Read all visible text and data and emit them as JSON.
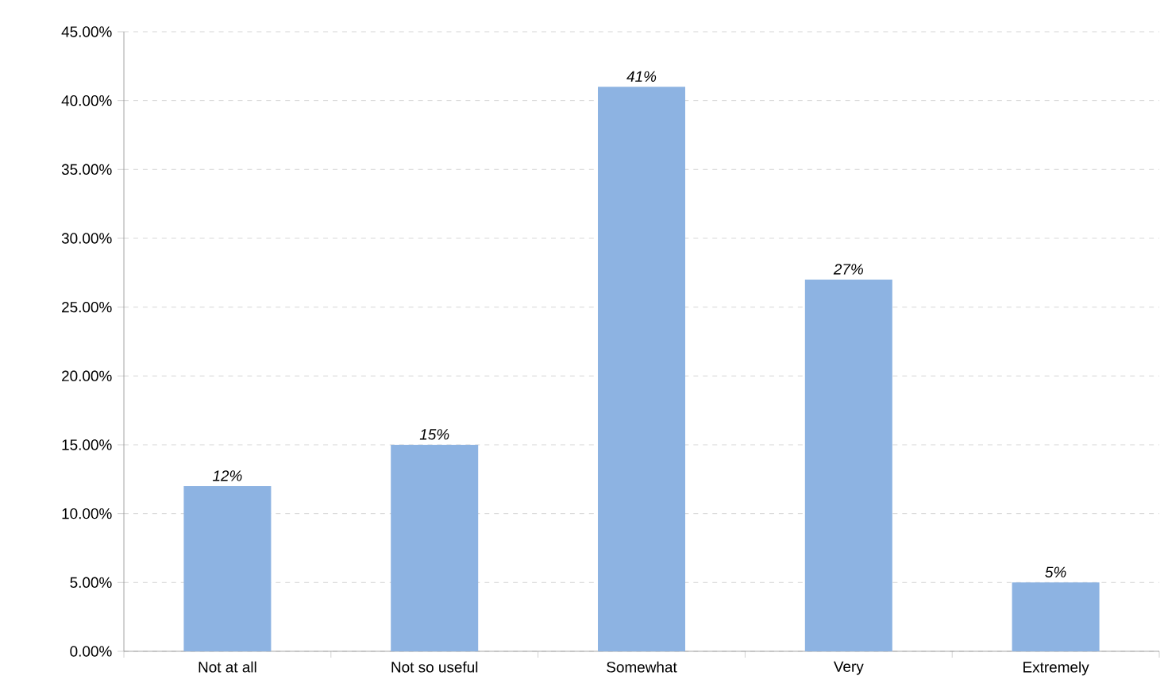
{
  "chart_data": {
    "type": "bar",
    "categories": [
      "Not at all",
      "Not so useful",
      "Somewhat",
      "Very",
      "Extremely"
    ],
    "values": [
      12,
      15,
      41,
      27,
      5
    ],
    "value_labels": [
      "12%",
      "15%",
      "41%",
      "27%",
      "5%"
    ],
    "color": "#8db3e2",
    "ylim": [
      0,
      45
    ],
    "yticks": [
      {
        "value": 0,
        "label": "0.00%"
      },
      {
        "value": 5,
        "label": "5.00%"
      },
      {
        "value": 10,
        "label": "10.00%"
      },
      {
        "value": 15,
        "label": "15.00%"
      },
      {
        "value": 20,
        "label": "20.00%"
      },
      {
        "value": 25,
        "label": "25.00%"
      },
      {
        "value": 30,
        "label": "30.00%"
      },
      {
        "value": 35,
        "label": "35.00%"
      },
      {
        "value": 40,
        "label": "40.00%"
      },
      {
        "value": 45,
        "label": "45.00%"
      }
    ],
    "grid": "y"
  }
}
